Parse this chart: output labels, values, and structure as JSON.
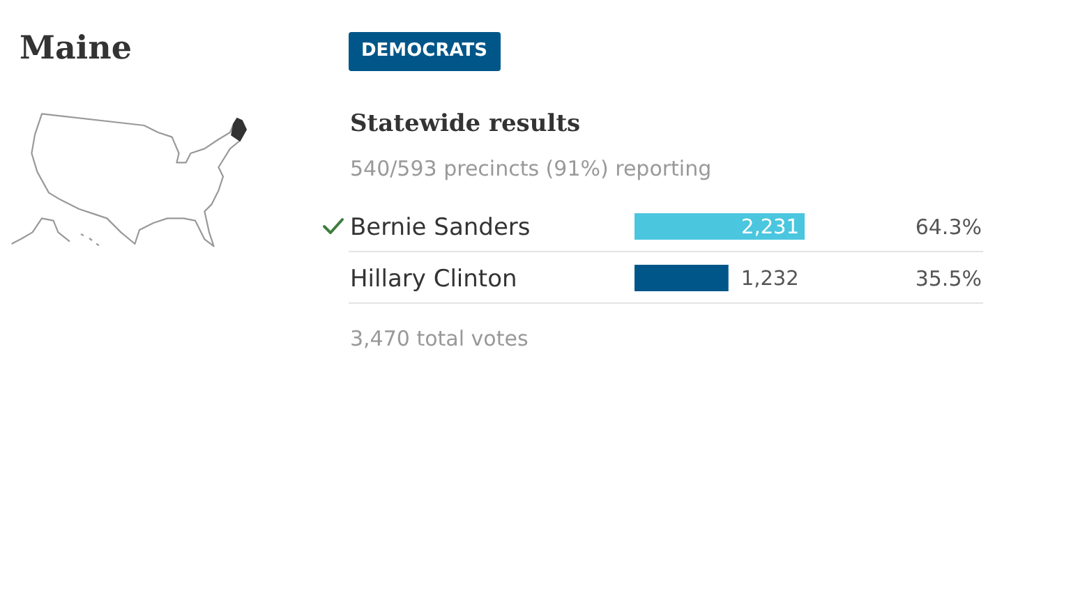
{
  "chart_data": {
    "type": "bar",
    "orientation": "horizontal",
    "title": "Maine",
    "subtitle": "Statewide results",
    "annotations": [
      "DEMOCRATS",
      "540/593 precincts (91%) reporting",
      "3,470 total votes",
      "64.3%",
      "35.5%"
    ],
    "categories": [
      "Bernie Sanders",
      "Hillary Clinton"
    ],
    "values": [
      2231,
      1232
    ],
    "colors": [
      "#4bc6df",
      "#005689"
    ],
    "value_labels": [
      "2,231",
      "1,232"
    ],
    "grid": "y"
  }
}
